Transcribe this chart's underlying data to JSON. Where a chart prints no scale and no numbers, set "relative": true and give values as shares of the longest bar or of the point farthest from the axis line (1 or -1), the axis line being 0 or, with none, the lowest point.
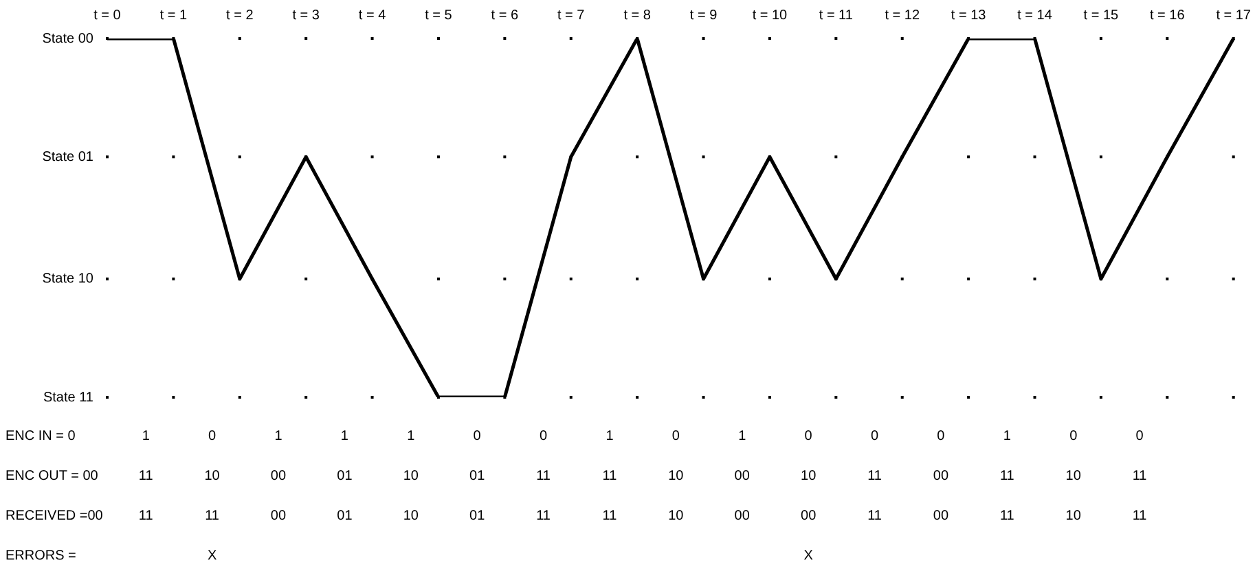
{
  "chart_data": {
    "type": "line",
    "relative": true,
    "categories": [
      "t = 0",
      "t = 1",
      "t = 2",
      "t = 3",
      "t = 4",
      "t = 5",
      "t = 6",
      "t = 7",
      "t = 8",
      "t = 9",
      "t = 10",
      "t = 11",
      "t = 12",
      "t = 13",
      "t = 14",
      "t = 15",
      "t = 16",
      "t = 17"
    ],
    "series": [
      {
        "color": "#000000",
        "values": [
          1,
          1,
          0.33,
          0.67,
          0.33,
          0,
          0,
          0.67,
          1,
          0.33,
          0.67,
          0.33,
          0.67,
          1,
          1,
          0.33,
          0.67,
          1
        ]
      }
    ],
    "ref_lines": [
      {
        "axis": "y",
        "value": 1,
        "label": "State 00",
        "color": "#000000",
        "line_style": "dotted"
      },
      {
        "axis": "y",
        "value": 0.67,
        "label": "State 01",
        "color": "#000000",
        "line_style": "dotted"
      },
      {
        "axis": "y",
        "value": 0.33,
        "label": "State 10",
        "color": "#000000",
        "line_style": "dotted"
      },
      {
        "axis": "y",
        "value": 0,
        "label": "State 11",
        "color": "#000000",
        "line_style": "dotted"
      }
    ],
    "legend": false,
    "marker": "none",
    "line_style": "solid",
    "annotations": [
      "ENC IN = 0\t1\t0\t1\t1\t1\t0\t0\t1\t0\t1\t0\t0\t0\t1\t0\t0",
      "ENC OUT = 00\t11\t10\t00\t01\t10\t01\t11\t11\t10\t00\t10\t11\t00\t11\t10\t11",
      "RECEIVED =00\t11\t11\t00\t01\t10\t01\t11\t11\t10\t00\t00\t11\t00\t11\t10\t11",
      "ERRORS =\t\tX\t\t\t\t\t\t\t\t\tX\t\t\t\t\t\t"
    ]
  }
}
